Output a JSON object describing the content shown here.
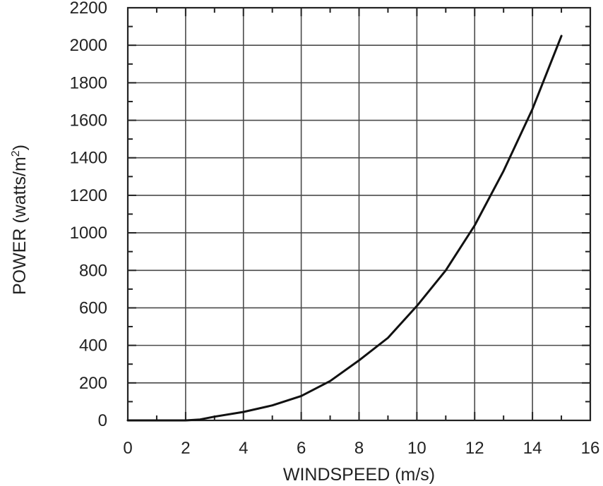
{
  "chart_data": {
    "type": "line",
    "xlabel": "WINDSPEED (m/s)",
    "ylabel": "POWER (watts/m",
    "ylabel_superscript": "2",
    "ylabel_close": ")",
    "xlim": [
      0,
      16
    ],
    "ylim": [
      0,
      2200
    ],
    "x_ticks": [
      0,
      2,
      4,
      6,
      8,
      10,
      12,
      14,
      16
    ],
    "y_ticks": [
      0,
      200,
      400,
      600,
      800,
      1000,
      1200,
      1400,
      1600,
      1800,
      2000,
      2200
    ],
    "x_tick_labels": [
      "0",
      "2",
      "4",
      "6",
      "8",
      "10",
      "12",
      "14",
      "16"
    ],
    "y_tick_labels": [
      "0",
      "200",
      "400",
      "600",
      "800",
      "1000",
      "1200",
      "1400",
      "1600",
      "1800",
      "2000",
      "2200"
    ],
    "grid": true,
    "series": [
      {
        "x": [
          0,
          1,
          2,
          2.5,
          3,
          4,
          5,
          6,
          7,
          8,
          9,
          10,
          11,
          12,
          13,
          14,
          15
        ],
        "y": [
          0,
          0,
          0,
          5,
          20,
          45,
          80,
          130,
          210,
          320,
          440,
          610,
          800,
          1040,
          1330,
          1660,
          2050
        ]
      }
    ]
  }
}
